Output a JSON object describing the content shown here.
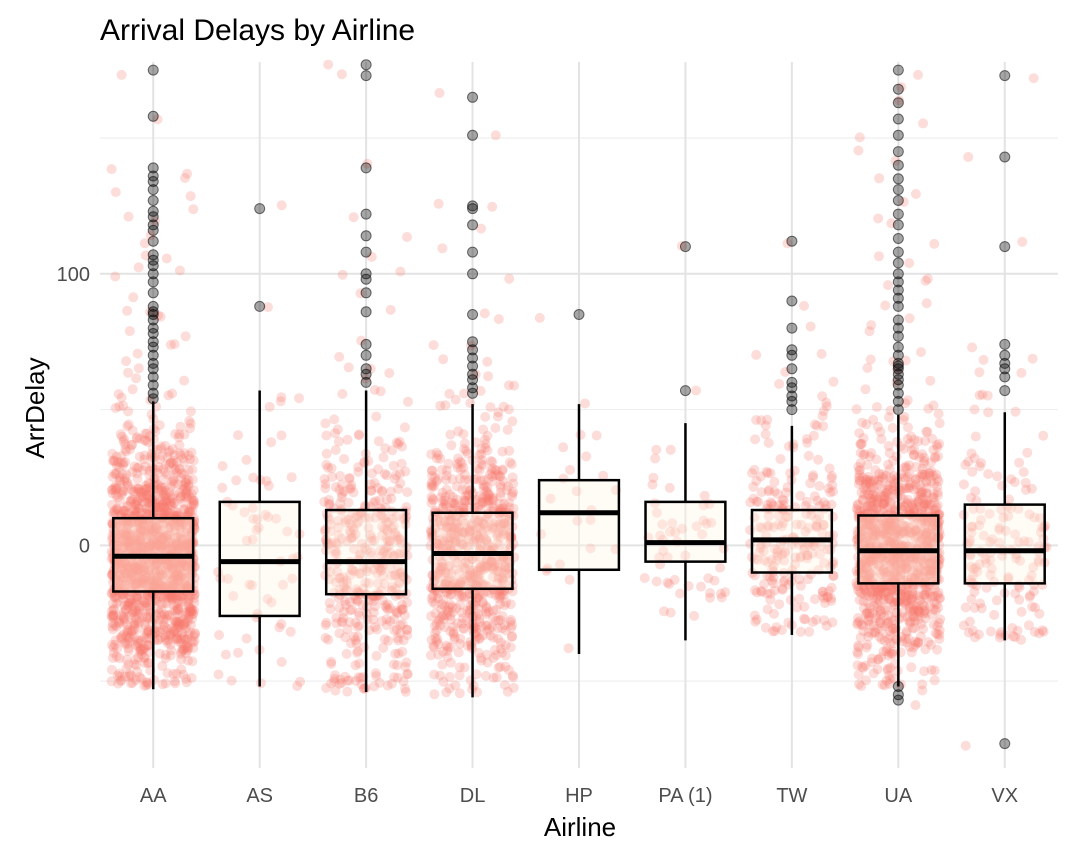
{
  "chart_data": {
    "type": "boxplot",
    "title": "Arrival Delays by Airline",
    "xlabel": "Airline",
    "ylabel": "ArrDelay",
    "ylim": [
      -82,
      178
    ],
    "yticks": [
      0,
      100
    ],
    "y_minor_gridlines": [
      -50,
      50,
      150
    ],
    "grid": true,
    "legend": "none",
    "colors": {
      "jitter_point": "#F8766D",
      "outlier_point": "#000000",
      "box_fill": "#FFF5E6",
      "box_stroke": "#000000",
      "grid_major": "#E3E3E3",
      "grid_minor": "#EFEFEF",
      "tick_text": "#4D4D4D"
    },
    "categories": [
      "AA",
      "AS",
      "B6",
      "DL",
      "HP",
      "PA (1)",
      "TW",
      "UA",
      "VX"
    ],
    "boxes": [
      {
        "name": "AA",
        "lower_whisker": -53,
        "q1": -17,
        "median": -4,
        "q3": 10,
        "upper_whisker": 53,
        "jitter_count": 1400,
        "outliers": [
          54,
          56,
          59,
          62,
          65,
          67,
          70,
          73,
          75,
          78,
          80,
          83,
          85,
          86,
          88,
          93,
          97,
          100,
          103,
          105,
          107,
          112,
          116,
          118,
          121,
          123,
          127,
          131,
          134,
          136,
          139,
          158,
          175
        ]
      },
      {
        "name": "AS",
        "lower_whisker": -52,
        "q1": -26,
        "median": -6,
        "q3": 16,
        "upper_whisker": 57,
        "jitter_count": 60,
        "outliers": [
          88,
          124
        ]
      },
      {
        "name": "B6",
        "lower_whisker": -54,
        "q1": -18,
        "median": -6,
        "q3": 13,
        "upper_whisker": 57,
        "jitter_count": 420,
        "outliers": [
          60,
          63,
          65,
          70,
          74,
          86,
          93,
          98,
          100,
          108,
          114,
          122,
          139,
          173,
          177
        ]
      },
      {
        "name": "DL",
        "lower_whisker": -56,
        "q1": -16,
        "median": -3,
        "q3": 12,
        "upper_whisker": 52,
        "jitter_count": 760,
        "outliers": [
          56,
          58,
          61,
          63,
          66,
          69,
          72,
          75,
          85,
          100,
          108,
          118,
          124,
          125,
          151,
          165
        ]
      },
      {
        "name": "HP",
        "lower_whisker": -40,
        "q1": -9,
        "median": 12,
        "q3": 24,
        "upper_whisker": 52,
        "jitter_count": 22,
        "outliers": [
          85
        ]
      },
      {
        "name": "PA (1)",
        "lower_whisker": -35,
        "q1": -6,
        "median": 1,
        "q3": 16,
        "upper_whisker": 45,
        "jitter_count": 50,
        "outliers": [
          57,
          110
        ]
      },
      {
        "name": "TW",
        "lower_whisker": -33,
        "q1": -10,
        "median": 2,
        "q3": 13,
        "upper_whisker": 44,
        "jitter_count": 240,
        "outliers": [
          50,
          53,
          55,
          58,
          60,
          65,
          70,
          72,
          80,
          90,
          112
        ]
      },
      {
        "name": "UA",
        "lower_whisker": -52,
        "q1": -14,
        "median": -2,
        "q3": 11,
        "upper_whisker": 48,
        "jitter_count": 1100,
        "outliers": [
          50,
          53,
          56,
          59,
          61,
          63,
          65,
          66,
          67,
          70,
          73,
          77,
          80,
          83,
          88,
          91,
          94,
          97,
          100,
          104,
          108,
          113,
          118,
          122,
          127,
          131,
          135,
          140,
          145,
          151,
          157,
          163,
          168,
          175,
          -52,
          -55,
          -57
        ]
      },
      {
        "name": "VX",
        "lower_whisker": -35,
        "q1": -14,
        "median": -2,
        "q3": 15,
        "upper_whisker": 49,
        "jitter_count": 150,
        "outliers": [
          57,
          62,
          65,
          67,
          70,
          74,
          110,
          143,
          173,
          -73
        ]
      }
    ]
  }
}
